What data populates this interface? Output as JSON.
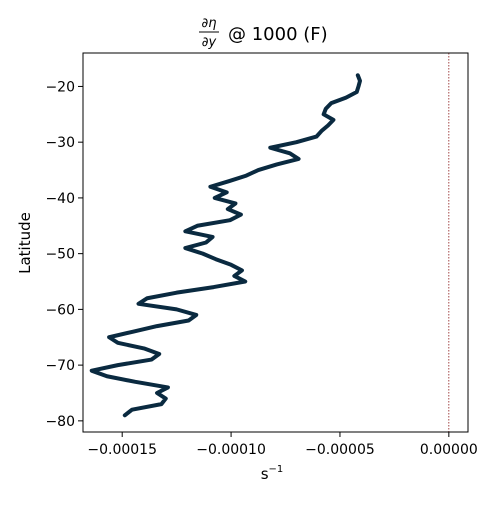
{
  "chart_data": {
    "type": "line",
    "title": {
      "numerator": "∂η",
      "denominator": "∂y",
      "suffix": "@ 1000 (F)"
    },
    "xlabel": "s",
    "xlabel_exponent": "−1",
    "ylabel": "Latitude",
    "xlim": [
      -0.000168,
      8.8e-06
    ],
    "ylim": [
      -82,
      -14
    ],
    "xticks": [
      {
        "value": -0.00015,
        "label": "−0.00015"
      },
      {
        "value": -0.0001,
        "label": "−0.00010"
      },
      {
        "value": -5e-05,
        "label": "−0.00005"
      },
      {
        "value": 0.0,
        "label": "0.00000"
      }
    ],
    "yticks": [
      {
        "value": -20,
        "label": "−20"
      },
      {
        "value": -30,
        "label": "−30"
      },
      {
        "value": -40,
        "label": "−40"
      },
      {
        "value": -50,
        "label": "−50"
      },
      {
        "value": -60,
        "label": "−60"
      },
      {
        "value": -70,
        "label": "−70"
      },
      {
        "value": -80,
        "label": "−80"
      }
    ],
    "grid": false,
    "reference_line": {
      "x": 0.0,
      "color": "#8b1a1a",
      "style": "dotted"
    },
    "series": [
      {
        "color": "#0a2a40",
        "points": [
          [
            -4.18e-05,
            -18.0
          ],
          [
            -4.08e-05,
            -19.0
          ],
          [
            -4.15e-05,
            -20.0
          ],
          [
            -4.23e-05,
            -21.0
          ],
          [
            -4.72e-05,
            -22.0
          ],
          [
            -5.4e-05,
            -23.0
          ],
          [
            -5.65e-05,
            -24.0
          ],
          [
            -5.75e-05,
            -25.0
          ],
          [
            -5.3e-05,
            -26.0
          ],
          [
            -5.55e-05,
            -27.0
          ],
          [
            -5.85e-05,
            -28.0
          ],
          [
            -6.08e-05,
            -29.0
          ],
          [
            -7e-05,
            -30.0
          ],
          [
            -8.2e-05,
            -31.0
          ],
          [
            -7.3e-05,
            -32.0
          ],
          [
            -6.9e-05,
            -33.0
          ],
          [
            -7.9e-05,
            -34.0
          ],
          [
            -8.75e-05,
            -35.0
          ],
          [
            -9.3e-05,
            -36.0
          ],
          [
            -0.000101,
            -37.0
          ],
          [
            -0.0001095,
            -38.0
          ],
          [
            -0.000102,
            -39.0
          ],
          [
            -0.0001075,
            -40.0
          ],
          [
            -9.8e-05,
            -41.0
          ],
          [
            -0.0001015,
            -42.0
          ],
          [
            -9.55e-05,
            -43.0
          ],
          [
            -0.0001005,
            -44.0
          ],
          [
            -0.0001155,
            -45.0
          ],
          [
            -0.000121,
            -46.0
          ],
          [
            -0.0001085,
            -47.0
          ],
          [
            -0.0001115,
            -48.0
          ],
          [
            -0.000121,
            -49.0
          ],
          [
            -0.000113,
            -50.0
          ],
          [
            -0.000107,
            -51.0
          ],
          [
            -0.0001,
            -52.0
          ],
          [
            -9.5e-05,
            -53.0
          ],
          [
            -9.85e-05,
            -54.0
          ],
          [
            -9.35e-05,
            -55.0
          ],
          [
            -0.000108,
            -56.0
          ],
          [
            -0.000125,
            -57.0
          ],
          [
            -0.0001385,
            -58.0
          ],
          [
            -0.0001425,
            -59.0
          ],
          [
            -0.000125,
            -60.0
          ],
          [
            -0.000116,
            -61.0
          ],
          [
            -0.0001195,
            -62.0
          ],
          [
            -0.000134,
            -63.0
          ],
          [
            -0.000145,
            -64.0
          ],
          [
            -0.000156,
            -65.0
          ],
          [
            -0.000152,
            -66.0
          ],
          [
            -0.00014,
            -67.0
          ],
          [
            -0.000133,
            -68.0
          ],
          [
            -0.0001365,
            -69.0
          ],
          [
            -0.000152,
            -70.0
          ],
          [
            -0.000164,
            -71.0
          ],
          [
            -0.000157,
            -72.0
          ],
          [
            -0.000144,
            -73.0
          ],
          [
            -0.000129,
            -74.0
          ],
          [
            -0.000134,
            -75.0
          ],
          [
            -0.00013,
            -76.0
          ],
          [
            -0.000132,
            -77.0
          ],
          [
            -0.0001455,
            -78.0
          ],
          [
            -0.0001488,
            -79.0
          ]
        ]
      }
    ]
  }
}
